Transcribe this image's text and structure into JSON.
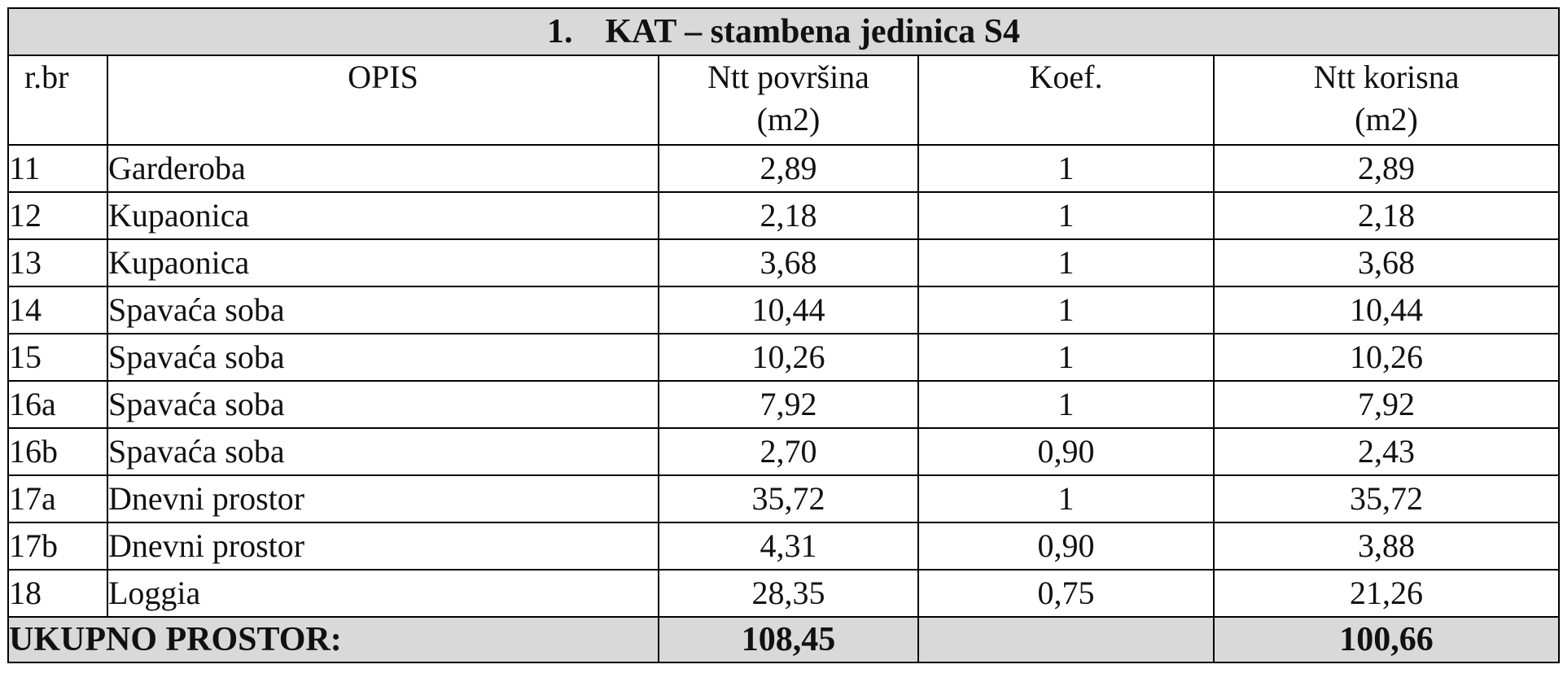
{
  "title": {
    "number": "1.",
    "text": "KAT – stambena jedinica S4"
  },
  "headers": {
    "num": "r.br",
    "desc": "OPIS",
    "area_line1": "Ntt površina",
    "area_line2": "(m2)",
    "coef": "Koef.",
    "useful_line1": "Ntt korisna",
    "useful_line2": "(m2)"
  },
  "rows": [
    {
      "num": "11",
      "desc": "Garderoba",
      "area": "2,89",
      "coef": "1",
      "useful": "2,89"
    },
    {
      "num": "12",
      "desc": "Kupaonica",
      "area": "2,18",
      "coef": "1",
      "useful": "2,18"
    },
    {
      "num": "13",
      "desc": "Kupaonica",
      "area": "3,68",
      "coef": "1",
      "useful": "3,68"
    },
    {
      "num": "14",
      "desc": "Spavaća soba",
      "area": "10,44",
      "coef": "1",
      "useful": "10,44"
    },
    {
      "num": "15",
      "desc": "Spavaća soba",
      "area": "10,26",
      "coef": "1",
      "useful": "10,26"
    },
    {
      "num": "16a",
      "desc": "Spavaća soba",
      "area": "7,92",
      "coef": "1",
      "useful": "7,92"
    },
    {
      "num": "16b",
      "desc": "Spavaća soba",
      "area": "2,70",
      "coef": "0,90",
      "useful": "2,43"
    },
    {
      "num": "17a",
      "desc": "Dnevni prostor",
      "area": "35,72",
      "coef": "1",
      "useful": "35,72"
    },
    {
      "num": "17b",
      "desc": "Dnevni prostor",
      "area": "4,31",
      "coef": "0,90",
      "useful": "3,88"
    },
    {
      "num": "18",
      "desc": "Loggia",
      "area": "28,35",
      "coef": "0,75",
      "useful": "21,26"
    }
  ],
  "total": {
    "label": "UKUPNO PROSTOR:",
    "area": "108,45",
    "useful": "100,66"
  }
}
